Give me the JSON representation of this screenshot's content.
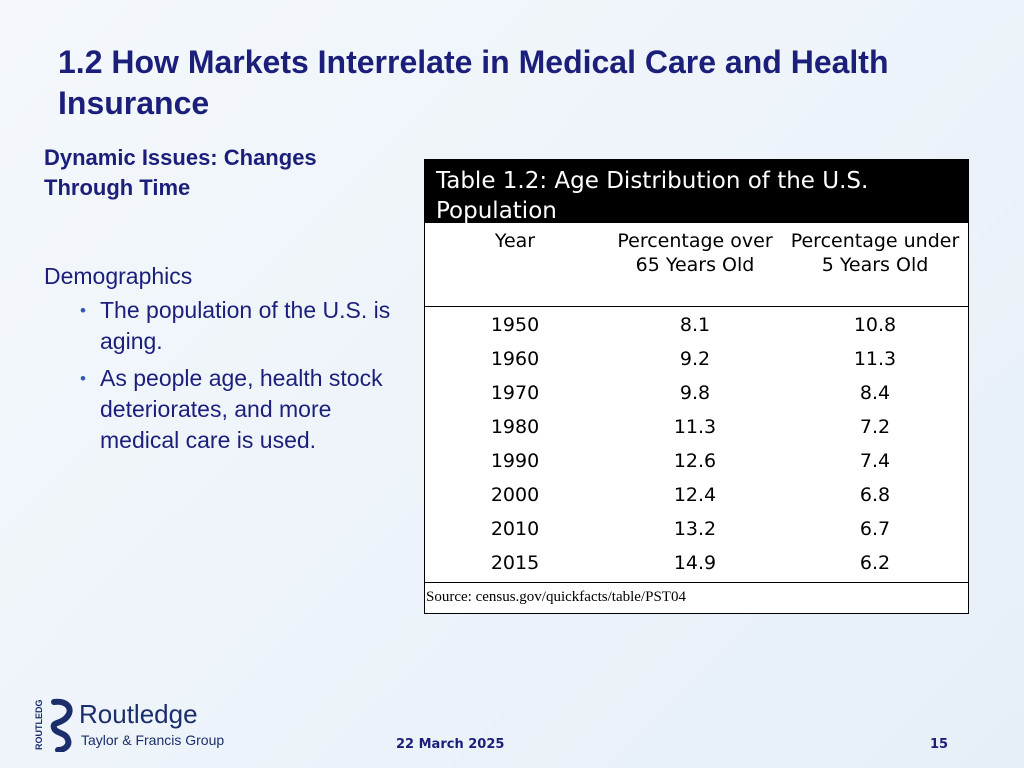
{
  "slide": {
    "title": "1.2  How Markets Interrelate in Medical Care and Health Insurance",
    "section_heading": "Dynamic Issues:  Changes Through Time",
    "topic": "Demographics",
    "bullets": [
      "The population of the U.S. is aging.",
      "As people age, health stock deteriorates, and more medical care is used."
    ]
  },
  "table": {
    "caption": "Table 1.2:  Age Distribution of the U.S. Population",
    "headers": [
      "Year",
      "Percentage over 65 Years Old",
      "Percentage under 5 Years Old"
    ],
    "rows": [
      [
        "1950",
        "8.1",
        "10.8"
      ],
      [
        "1960",
        "9.2",
        "11.3"
      ],
      [
        "1970",
        "9.8",
        "8.4"
      ],
      [
        "1980",
        "11.3",
        "7.2"
      ],
      [
        "1990",
        "12.6",
        "7.4"
      ],
      [
        "2000",
        "12.4",
        "6.8"
      ],
      [
        "2010",
        "13.2",
        "6.7"
      ],
      [
        "2015",
        "14.9",
        "6.2"
      ]
    ],
    "source": "Source:  census.gov/quickfacts/table/PST04"
  },
  "logo": {
    "name": "Routledge",
    "subtitle": "Taylor & Francis Group",
    "vertical_text": "ROUTLEDGE",
    "icon": "routledge-r-mark-icon"
  },
  "footer": {
    "date": "22 March 2025",
    "page_number": "15"
  },
  "colors": {
    "title": "#1b1f7a",
    "bullet": "#2e59b8",
    "table_caption_bg": "#000000",
    "logo": "#1b2e6b"
  }
}
